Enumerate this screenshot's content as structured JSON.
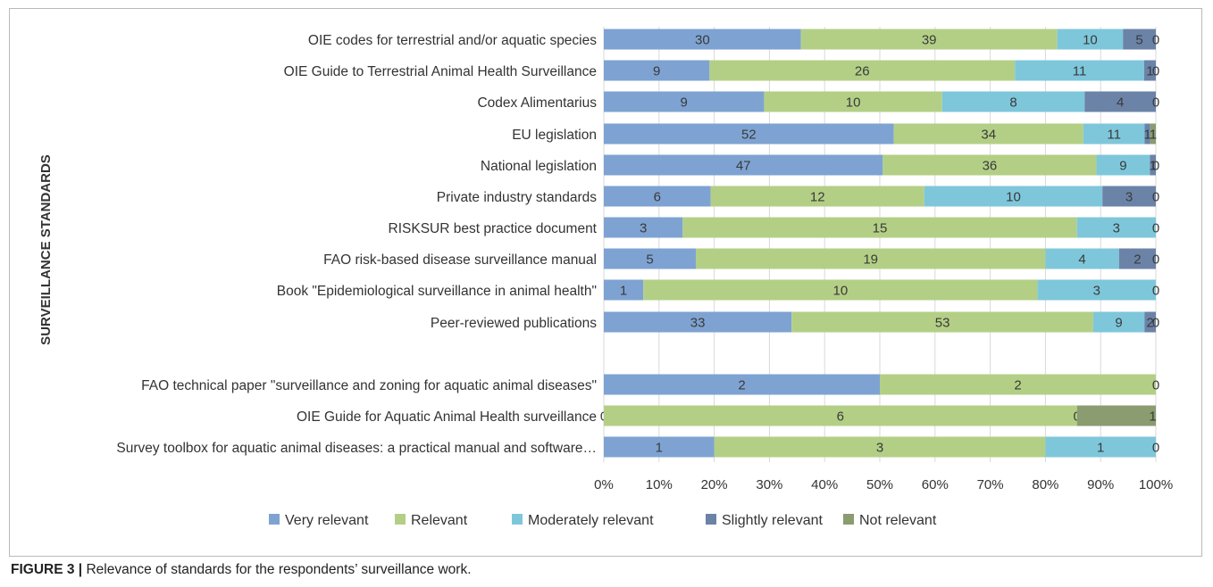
{
  "caption": {
    "label": "FIGURE 3 |",
    "text": " Relevance of standards for the respondents’ surveillance work."
  },
  "chart_data": {
    "type": "bar",
    "orientation": "horizontal",
    "stacked": "percent",
    "ylabel": "SURVEILLANCE STANDARDS",
    "xlabel": "",
    "xlim": [
      0,
      100
    ],
    "x_ticks": [
      "0%",
      "10%",
      "20%",
      "30%",
      "40%",
      "50%",
      "60%",
      "70%",
      "80%",
      "90%",
      "100%"
    ],
    "grid": true,
    "legend_position": "bottom",
    "categories": [
      "OIE codes for terrestrial and/or aquatic species",
      "OIE Guide to Terrestrial Animal Health Surveillance",
      "Codex Alimentarius",
      "EU legislation",
      "National legislation",
      "Private industry standards",
      "RISKSUR best practice document",
      "FAO risk-based disease surveillance manual",
      "Book \"Epidemiological surveillance in animal health\"",
      "Peer-reviewed publications",
      "FAO technical paper \"surveillance and zoning for aquatic animal diseases\"",
      "OIE Guide for Aquatic Animal Health surveillance",
      "Survey toolbox for aquatic animal diseases: a practical manual and software…"
    ],
    "series": [
      {
        "name": "Very relevant",
        "color": "#7ea3d2",
        "values": [
          30,
          9,
          9,
          52,
          47,
          6,
          3,
          5,
          1,
          33,
          2,
          0,
          1
        ]
      },
      {
        "name": "Relevant",
        "color": "#b3cf86",
        "values": [
          39,
          26,
          10,
          34,
          36,
          12,
          15,
          19,
          10,
          53,
          2,
          6,
          3
        ]
      },
      {
        "name": "Moderately relevant",
        "color": "#7ec7db",
        "values": [
          10,
          11,
          8,
          11,
          9,
          10,
          3,
          4,
          3,
          9,
          0,
          0,
          1
        ]
      },
      {
        "name": "Slightly relevant",
        "color": "#6b83a7",
        "values": [
          5,
          1,
          4,
          1,
          1,
          3,
          0,
          2,
          0,
          2,
          0,
          0,
          0
        ]
      },
      {
        "name": "Not relevant",
        "color": "#8a9c70",
        "values": [
          0,
          0,
          0,
          1,
          0,
          0,
          0,
          0,
          0,
          0,
          0,
          1,
          0
        ]
      }
    ],
    "value_labels": [
      [
        "30",
        "39",
        "10",
        "5",
        "0"
      ],
      [
        "9",
        "26",
        "11",
        "1",
        "0"
      ],
      [
        "9",
        "10",
        "8",
        "4",
        "0"
      ],
      [
        "52",
        "34",
        "11",
        "1",
        "1"
      ],
      [
        "47",
        "36",
        "9",
        "1",
        "0"
      ],
      [
        "6",
        "12",
        "10",
        "3",
        "0"
      ],
      [
        "3",
        "15",
        "3",
        "",
        "0"
      ],
      [
        "5",
        "19",
        "4",
        "2",
        "0"
      ],
      [
        "1",
        "10",
        "3",
        "",
        "0"
      ],
      [
        "33",
        "53",
        "9",
        "2",
        "0"
      ],
      [
        "2",
        "2",
        "",
        "",
        "0"
      ],
      [
        "0",
        "6",
        "0",
        "",
        "1"
      ],
      [
        "1",
        "3",
        "1",
        "",
        "0"
      ]
    ]
  }
}
